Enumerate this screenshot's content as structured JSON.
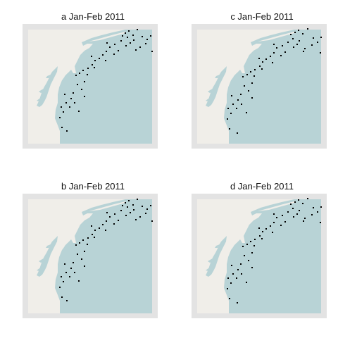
{
  "colors": {
    "frame": "#e3e3e3",
    "land": "#f0eee9",
    "water": "#b8d3d6",
    "point": "#000000"
  },
  "panels": [
    {
      "id": "a",
      "title": "a Jan-Feb 2011",
      "point_set": "set1"
    },
    {
      "id": "c",
      "title": "c Jan-Feb 2011",
      "point_set": "set2"
    },
    {
      "id": "b",
      "title": "b Jan-Feb 2011",
      "point_set": "set1"
    },
    {
      "id": "d",
      "title": "d Jan-Feb 2011",
      "point_set": "set2"
    }
  ]
}
